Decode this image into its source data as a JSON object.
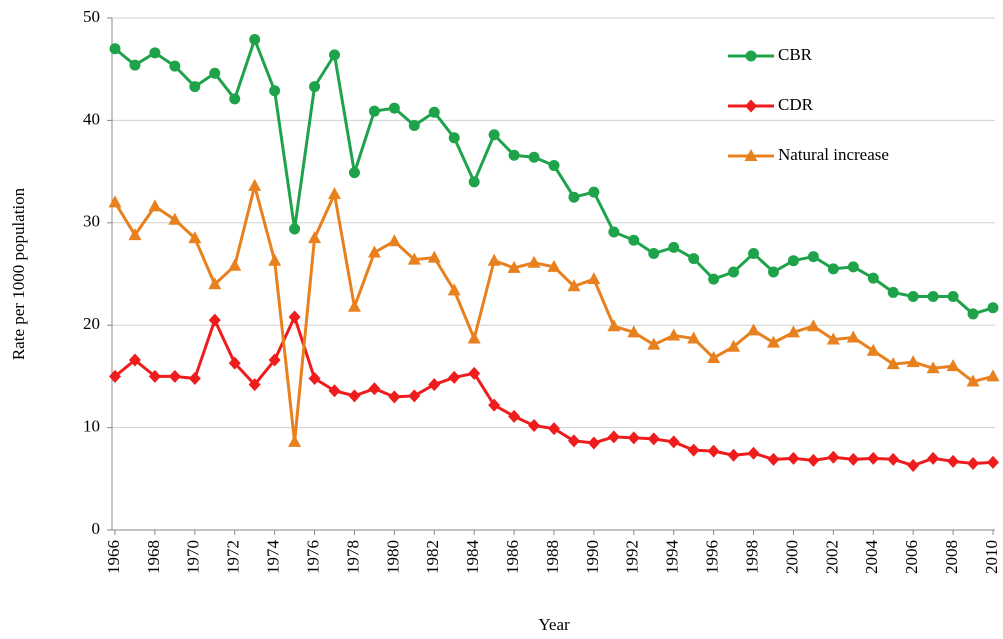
{
  "chart_data": {
    "type": "line",
    "x_label": "Year",
    "y_label": "Rate per 1000 population",
    "x": [
      1966,
      1967,
      1968,
      1969,
      1970,
      1971,
      1972,
      1973,
      1974,
      1975,
      1976,
      1977,
      1978,
      1979,
      1980,
      1981,
      1982,
      1983,
      1984,
      1985,
      1986,
      1987,
      1988,
      1989,
      1990,
      1991,
      1992,
      1993,
      1994,
      1995,
      1996,
      1997,
      1998,
      1999,
      2000,
      2001,
      2002,
      2003,
      2004,
      2005,
      2006,
      2007,
      2008,
      2009,
      2010
    ],
    "xlim": [
      1966,
      2010
    ],
    "xticks": [
      1966,
      1968,
      1970,
      1972,
      1974,
      1976,
      1978,
      1980,
      1982,
      1984,
      1986,
      1988,
      1990,
      1992,
      1994,
      1996,
      1998,
      2000,
      2002,
      2004,
      2006,
      2008,
      2010
    ],
    "ylim": [
      0,
      50
    ],
    "yticks": [
      0,
      10,
      20,
      30,
      40,
      50
    ],
    "grid": true,
    "legend": "top-right",
    "series": [
      {
        "name": "CBR",
        "color": "#1fa34a",
        "marker": "circle",
        "values": [
          47.0,
          45.4,
          46.6,
          45.3,
          43.3,
          44.6,
          42.1,
          47.9,
          42.9,
          29.4,
          43.3,
          46.4,
          34.9,
          40.9,
          41.2,
          39.5,
          40.8,
          38.3,
          34.0,
          38.6,
          36.6,
          36.4,
          35.6,
          32.5,
          33.0,
          29.1,
          28.3,
          27.0,
          27.6,
          26.5,
          24.5,
          25.2,
          27.0,
          25.2,
          26.3,
          26.7,
          25.5,
          25.7,
          24.6,
          23.2,
          22.8,
          22.8,
          22.8,
          21.1,
          21.7
        ]
      },
      {
        "name": "CDR",
        "color": "#ee1c1c",
        "marker": "diamond",
        "values": [
          15.0,
          16.6,
          15.0,
          15.0,
          14.8,
          20.5,
          16.3,
          14.2,
          16.6,
          20.8,
          14.8,
          13.6,
          13.1,
          13.8,
          13.0,
          13.1,
          14.2,
          14.9,
          15.3,
          12.2,
          11.1,
          10.2,
          9.9,
          8.7,
          8.5,
          9.1,
          9.0,
          8.9,
          8.6,
          7.8,
          7.7,
          7.3,
          7.5,
          6.9,
          7.0,
          6.8,
          7.1,
          6.9,
          7.0,
          6.9,
          6.3,
          7.0,
          6.7,
          6.5,
          6.6
        ]
      },
      {
        "name": "Natural increase",
        "color": "#e8801e",
        "marker": "triangle",
        "values": [
          32.0,
          28.8,
          31.6,
          30.3,
          28.5,
          24.0,
          25.8,
          33.6,
          26.3,
          8.6,
          28.5,
          32.8,
          21.8,
          27.1,
          28.2,
          26.4,
          26.6,
          23.4,
          18.7,
          26.3,
          25.6,
          26.1,
          25.7,
          23.8,
          24.5,
          19.9,
          19.3,
          18.1,
          19.0,
          18.7,
          16.8,
          17.9,
          19.5,
          18.3,
          19.3,
          19.9,
          18.6,
          18.8,
          17.5,
          16.2,
          16.4,
          15.8,
          16.0,
          14.5,
          15.0
        ]
      }
    ]
  }
}
